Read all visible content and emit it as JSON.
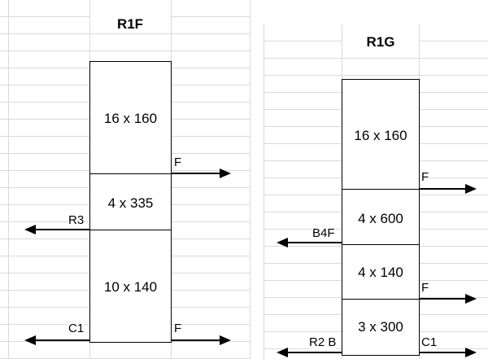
{
  "left_sheet": {
    "title": "R1F",
    "sections": [
      "16 x 160",
      "4 x 335",
      "10 x 140"
    ],
    "labels": {
      "f_upper": "F",
      "r3": "R3",
      "c1": "C1",
      "f_lower": "F"
    }
  },
  "right_sheet": {
    "title": "R1G",
    "sections": [
      "16 x 160",
      "4 x 600",
      "4 x 140",
      "3 x 300"
    ],
    "labels": {
      "f_upper": "F",
      "b4f": "B4F",
      "f_middle": "F",
      "r2b": "R2 B",
      "c1": "C1"
    }
  }
}
